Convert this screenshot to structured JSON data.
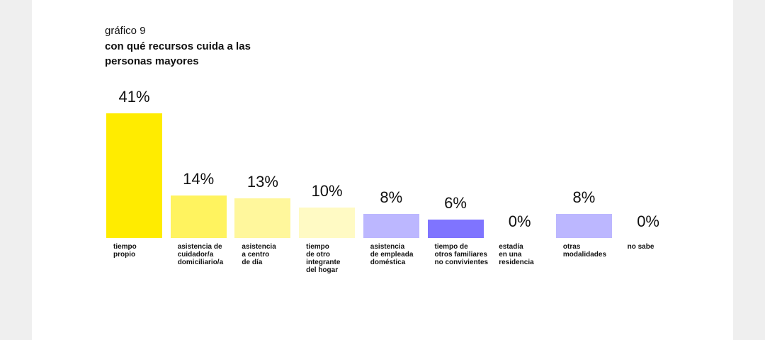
{
  "chart_data": {
    "type": "bar",
    "subtitle": "gráfico 9",
    "title": "con qué recursos cuida a las personas mayores",
    "categories": [
      "tiempo\npropio",
      "asistencia de\ncuidador/a\ndomiciliario/a",
      "asistencia\na centro\nde día",
      "tiempo\nde otro\nintegrante\ndel hogar",
      "asistencia\nde empleada\ndoméstica",
      "tiempo de\notros familiares\nno convivientes",
      "estadía\nen una\nresidencia",
      "otras\nmodalidades",
      "no sabe"
    ],
    "values": [
      41,
      14,
      13,
      10,
      8,
      6,
      0,
      8,
      0
    ],
    "value_labels": [
      "41%",
      "14%",
      "13%",
      "10%",
      "8%",
      "6%",
      "0%",
      "8%",
      "0%"
    ],
    "colors": [
      "#ffec00",
      "#fff35f",
      "#fff79c",
      "#fffac4",
      "#bcb7ff",
      "#7f74ff",
      "#ffffff",
      "#bcb7ff",
      "#ffffff"
    ]
  }
}
